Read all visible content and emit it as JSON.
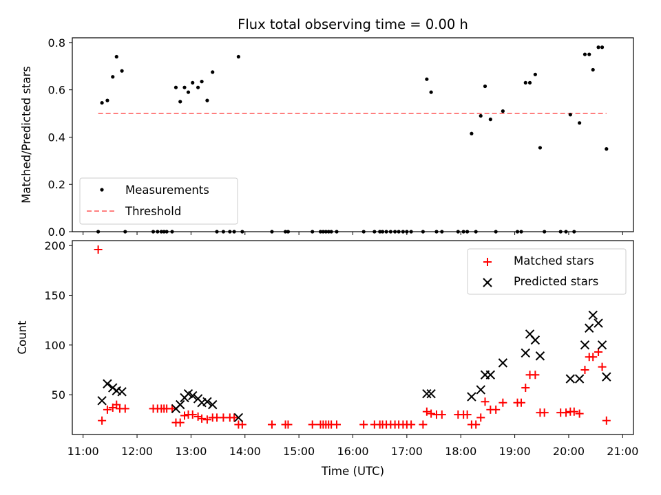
{
  "chart_data": [
    {
      "type": "scatter",
      "title": "Flux total observing time = 0.00 h",
      "xlabel": "",
      "ylabel": "Matched/Predicted stars",
      "xlim": [
        10.8,
        21.2
      ],
      "ylim": [
        0,
        0.82
      ],
      "yticks": [
        "0.0",
        "0.2",
        "0.4",
        "0.6",
        "0.8"
      ],
      "grid": false,
      "legend": "lower-left",
      "series": [
        {
          "name": "Measurements",
          "marker": "dot",
          "color": "#000000",
          "points": [
            [
              11.28,
              0.0
            ],
            [
              11.35,
              0.545
            ],
            [
              11.45,
              0.555
            ],
            [
              11.55,
              0.655
            ],
            [
              11.62,
              0.74
            ],
            [
              11.72,
              0.68
            ],
            [
              11.78,
              0.0
            ],
            [
              12.3,
              0.0
            ],
            [
              12.38,
              0.0
            ],
            [
              12.45,
              0.0
            ],
            [
              12.5,
              0.0
            ],
            [
              12.55,
              0.0
            ],
            [
              12.65,
              0.0
            ],
            [
              12.72,
              0.61
            ],
            [
              12.8,
              0.55
            ],
            [
              12.88,
              0.61
            ],
            [
              12.95,
              0.59
            ],
            [
              13.03,
              0.63
            ],
            [
              13.13,
              0.61
            ],
            [
              13.2,
              0.635
            ],
            [
              13.3,
              0.555
            ],
            [
              13.4,
              0.675
            ],
            [
              13.48,
              0.0
            ],
            [
              13.6,
              0.0
            ],
            [
              13.72,
              0.0
            ],
            [
              13.8,
              0.0
            ],
            [
              13.88,
              0.74
            ],
            [
              13.95,
              0.0
            ],
            [
              14.5,
              0.0
            ],
            [
              14.75,
              0.0
            ],
            [
              14.8,
              0.0
            ],
            [
              15.25,
              0.0
            ],
            [
              15.4,
              0.0
            ],
            [
              15.45,
              0.0
            ],
            [
              15.5,
              0.0
            ],
            [
              15.55,
              0.0
            ],
            [
              15.6,
              0.0
            ],
            [
              15.7,
              0.0
            ],
            [
              16.2,
              0.0
            ],
            [
              16.4,
              0.0
            ],
            [
              16.5,
              0.0
            ],
            [
              16.55,
              0.0
            ],
            [
              16.62,
              0.0
            ],
            [
              16.7,
              0.0
            ],
            [
              16.78,
              0.0
            ],
            [
              16.85,
              0.0
            ],
            [
              16.93,
              0.0
            ],
            [
              17.0,
              0.0
            ],
            [
              17.08,
              0.0
            ],
            [
              17.3,
              0.0
            ],
            [
              17.37,
              0.645
            ],
            [
              17.45,
              0.59
            ],
            [
              17.55,
              0.0
            ],
            [
              17.65,
              0.0
            ],
            [
              17.95,
              0.0
            ],
            [
              18.05,
              0.0
            ],
            [
              18.12,
              0.0
            ],
            [
              18.2,
              0.415
            ],
            [
              18.28,
              0.0
            ],
            [
              18.37,
              0.49
            ],
            [
              18.45,
              0.615
            ],
            [
              18.55,
              0.475
            ],
            [
              18.65,
              0.0
            ],
            [
              18.78,
              0.51
            ],
            [
              19.05,
              0.0
            ],
            [
              19.12,
              0.0
            ],
            [
              19.2,
              0.63
            ],
            [
              19.28,
              0.63
            ],
            [
              19.38,
              0.665
            ],
            [
              19.47,
              0.355
            ],
            [
              19.55,
              0.0
            ],
            [
              19.85,
              0.0
            ],
            [
              19.95,
              0.0
            ],
            [
              20.03,
              0.495
            ],
            [
              20.1,
              0.0
            ],
            [
              20.2,
              0.46
            ],
            [
              20.3,
              0.75
            ],
            [
              20.38,
              0.75
            ],
            [
              20.45,
              0.685
            ],
            [
              20.55,
              0.78
            ],
            [
              20.62,
              0.78
            ],
            [
              20.7,
              0.35
            ]
          ]
        },
        {
          "name": "Threshold",
          "marker": "dashed-line",
          "color": "#ff7f7f",
          "points": [
            [
              11.28,
              0.5
            ],
            [
              20.7,
              0.5
            ]
          ]
        }
      ]
    },
    {
      "type": "scatter",
      "title": "",
      "xlabel": "Time (UTC)",
      "ylabel": "Count",
      "xlim": [
        10.8,
        21.2
      ],
      "ylim": [
        10,
        205
      ],
      "xticks": [
        11,
        12,
        13,
        14,
        15,
        16,
        17,
        18,
        19,
        20,
        21
      ],
      "xtick_labels": [
        "11:00",
        "12:00",
        "13:00",
        "14:00",
        "15:00",
        "16:00",
        "17:00",
        "18:00",
        "19:00",
        "20:00",
        "21:00"
      ],
      "yticks": [
        50,
        100,
        150,
        200
      ],
      "ytick_labels": [
        "50",
        "100",
        "150",
        "200"
      ],
      "grid": false,
      "legend": "upper-right",
      "series": [
        {
          "name": "Matched stars",
          "marker": "plus",
          "color": "#ff0000",
          "points": [
            [
              11.28,
              196
            ],
            [
              11.35,
              24
            ],
            [
              11.45,
              35
            ],
            [
              11.55,
              37
            ],
            [
              11.62,
              40
            ],
            [
              11.68,
              36
            ],
            [
              11.78,
              36
            ],
            [
              12.3,
              36
            ],
            [
              12.38,
              36
            ],
            [
              12.45,
              36
            ],
            [
              12.5,
              36
            ],
            [
              12.55,
              36
            ],
            [
              12.65,
              36
            ],
            [
              12.72,
              22
            ],
            [
              12.8,
              22
            ],
            [
              12.88,
              29
            ],
            [
              12.95,
              30
            ],
            [
              13.03,
              30
            ],
            [
              13.13,
              28
            ],
            [
              13.2,
              26
            ],
            [
              13.3,
              25
            ],
            [
              13.4,
              27
            ],
            [
              13.48,
              27
            ],
            [
              13.6,
              27
            ],
            [
              13.72,
              27
            ],
            [
              13.8,
              27
            ],
            [
              13.88,
              20
            ],
            [
              13.95,
              20
            ],
            [
              14.5,
              20
            ],
            [
              14.75,
              20
            ],
            [
              14.8,
              20
            ],
            [
              15.25,
              20
            ],
            [
              15.4,
              20
            ],
            [
              15.45,
              20
            ],
            [
              15.5,
              20
            ],
            [
              15.55,
              20
            ],
            [
              15.6,
              20
            ],
            [
              15.7,
              20
            ],
            [
              16.2,
              20
            ],
            [
              16.4,
              20
            ],
            [
              16.5,
              20
            ],
            [
              16.55,
              20
            ],
            [
              16.62,
              20
            ],
            [
              16.7,
              20
            ],
            [
              16.78,
              20
            ],
            [
              16.85,
              20
            ],
            [
              16.93,
              20
            ],
            [
              17.0,
              20
            ],
            [
              17.08,
              20
            ],
            [
              17.3,
              20
            ],
            [
              17.37,
              33
            ],
            [
              17.45,
              31
            ],
            [
              17.55,
              30
            ],
            [
              17.65,
              30
            ],
            [
              17.95,
              30
            ],
            [
              18.05,
              30
            ],
            [
              18.12,
              30
            ],
            [
              18.2,
              20
            ],
            [
              18.28,
              20
            ],
            [
              18.37,
              27
            ],
            [
              18.45,
              43
            ],
            [
              18.55,
              35
            ],
            [
              18.65,
              35
            ],
            [
              18.78,
              42
            ],
            [
              19.05,
              42
            ],
            [
              19.12,
              42
            ],
            [
              19.2,
              57
            ],
            [
              19.28,
              70
            ],
            [
              19.38,
              70
            ],
            [
              19.47,
              32
            ],
            [
              19.55,
              32
            ],
            [
              19.85,
              32
            ],
            [
              19.95,
              32
            ],
            [
              20.03,
              33
            ],
            [
              20.1,
              33
            ],
            [
              20.2,
              31
            ],
            [
              20.3,
              75
            ],
            [
              20.38,
              88
            ],
            [
              20.45,
              88
            ],
            [
              20.55,
              93
            ],
            [
              20.62,
              78
            ],
            [
              20.7,
              24
            ]
          ]
        },
        {
          "name": "Predicted stars",
          "marker": "x",
          "color": "#000000",
          "points": [
            [
              11.35,
              44
            ],
            [
              11.45,
              61
            ],
            [
              11.55,
              57
            ],
            [
              11.62,
              54
            ],
            [
              11.72,
              53
            ],
            [
              12.72,
              36
            ],
            [
              12.8,
              40
            ],
            [
              12.88,
              47
            ],
            [
              12.95,
              51
            ],
            [
              13.03,
              49
            ],
            [
              13.13,
              46
            ],
            [
              13.2,
              42
            ],
            [
              13.3,
              43
            ],
            [
              13.4,
              40
            ],
            [
              13.88,
              27
            ],
            [
              17.37,
              51
            ],
            [
              17.45,
              51
            ],
            [
              18.2,
              48
            ],
            [
              18.37,
              55
            ],
            [
              18.45,
              70
            ],
            [
              18.55,
              70
            ],
            [
              18.78,
              82
            ],
            [
              19.2,
              92
            ],
            [
              19.28,
              111
            ],
            [
              19.38,
              105
            ],
            [
              19.47,
              89
            ],
            [
              20.03,
              66
            ],
            [
              20.2,
              66
            ],
            [
              20.3,
              100
            ],
            [
              20.38,
              117
            ],
            [
              20.45,
              130
            ],
            [
              20.55,
              122
            ],
            [
              20.62,
              100
            ],
            [
              20.7,
              68
            ]
          ]
        }
      ]
    }
  ]
}
